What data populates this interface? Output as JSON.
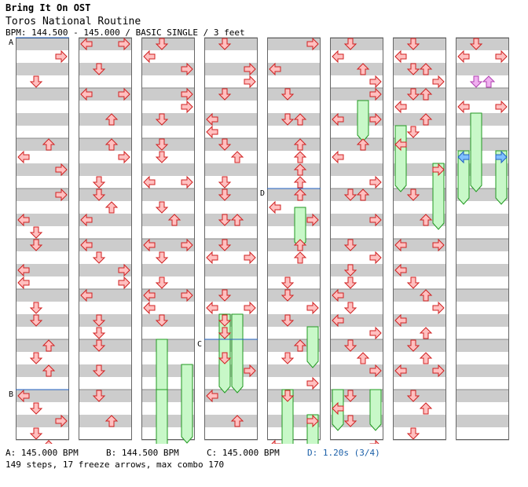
{
  "header": {
    "title": "Bring It On OST",
    "subtitle": "Toros National Routine",
    "meta": "BPM: 144.500 - 145.000 / BASIC SINGLE / 3 feet"
  },
  "markers": [
    {
      "label": "A",
      "column": 0,
      "beat": 0
    },
    {
      "label": "B",
      "column": 0,
      "beat": 28
    },
    {
      "label": "C",
      "column": 3,
      "beat": 24
    },
    {
      "label": "D",
      "column": 4,
      "beat": 12
    }
  ],
  "legend": {
    "a": "A: 145.000 BPM",
    "b": "B: 144.500 BPM",
    "c": "C: 145.000 BPM",
    "d": "D: 1.20s (3/4)"
  },
  "stats": "149 steps, 17 freeze arrows, max combo 170",
  "colors": {
    "arrow_fill": "#ffc0c0",
    "arrow_stroke": "#d02020",
    "freeze_fill": "#c8f8c8",
    "freeze_stroke": "#229922",
    "blue_arrow": "#80c0ff",
    "pink_arrow": "#f0b0f0",
    "stripe": "#cccccc",
    "marker_line": "#2060c0"
  },
  "chart_data": {
    "type": "step-chart",
    "lane_order": [
      "left",
      "down",
      "up",
      "right"
    ],
    "beats_per_column": 32,
    "columns": [
      {
        "notes": [
          [
            2,
            3
          ],
          [
            6,
            1
          ],
          [
            16,
            2
          ],
          [
            18,
            0
          ],
          [
            20,
            3
          ],
          [
            24,
            3
          ],
          [
            28,
            0
          ],
          [
            30,
            1
          ],
          [
            32,
            1
          ],
          [
            36,
            0
          ],
          [
            38,
            0
          ],
          [
            42,
            1
          ],
          [
            44,
            1
          ],
          [
            48,
            2
          ],
          [
            50,
            1
          ],
          [
            52,
            2
          ],
          [
            56,
            0
          ],
          [
            58,
            1
          ],
          [
            60,
            3
          ],
          [
            62,
            1
          ],
          [
            64,
            2
          ],
          [
            66,
            2
          ],
          [
            68,
            2
          ]
        ],
        "holds": []
      },
      {
        "notes": [
          [
            0,
            0
          ],
          [
            0,
            3
          ],
          [
            4,
            1
          ],
          [
            8,
            0
          ],
          [
            8,
            3
          ],
          [
            12,
            2
          ],
          [
            16,
            2
          ],
          [
            18,
            3
          ],
          [
            22,
            1
          ],
          [
            24,
            1
          ],
          [
            26,
            2
          ],
          [
            28,
            0
          ],
          [
            32,
            0
          ],
          [
            34,
            1
          ],
          [
            36,
            3
          ],
          [
            38,
            3
          ],
          [
            40,
            0
          ],
          [
            44,
            1
          ],
          [
            46,
            1
          ],
          [
            48,
            1
          ],
          [
            52,
            1
          ],
          [
            56,
            1
          ],
          [
            60,
            2
          ],
          [
            66,
            2
          ]
        ],
        "holds": []
      },
      {
        "notes": [
          [
            0,
            1
          ],
          [
            2,
            0
          ],
          [
            4,
            3
          ],
          [
            8,
            3
          ],
          [
            10,
            3
          ],
          [
            12,
            1
          ],
          [
            16,
            1
          ],
          [
            18,
            1
          ],
          [
            22,
            0
          ],
          [
            22,
            3
          ],
          [
            26,
            1
          ],
          [
            28,
            2
          ],
          [
            32,
            0
          ],
          [
            32,
            3
          ],
          [
            34,
            1
          ],
          [
            38,
            1
          ],
          [
            40,
            0
          ],
          [
            40,
            3
          ],
          [
            42,
            0
          ],
          [
            44,
            1
          ],
          [
            66,
            0
          ],
          [
            70,
            3
          ]
        ],
        "holds": [
          [
            48,
            1,
            6
          ],
          [
            52,
            3,
            6
          ],
          [
            56,
            1,
            6
          ]
        ]
      },
      {
        "notes": [
          [
            0,
            1
          ],
          [
            4,
            3
          ],
          [
            6,
            3
          ],
          [
            8,
            1
          ],
          [
            12,
            0
          ],
          [
            14,
            0
          ],
          [
            16,
            1
          ],
          [
            18,
            2
          ],
          [
            22,
            1
          ],
          [
            24,
            1
          ],
          [
            28,
            1
          ],
          [
            28,
            2
          ],
          [
            32,
            1
          ],
          [
            34,
            0
          ],
          [
            34,
            3
          ],
          [
            40,
            1
          ],
          [
            42,
            0
          ],
          [
            42,
            3
          ],
          [
            44,
            1
          ],
          [
            46,
            1
          ],
          [
            50,
            1
          ],
          [
            52,
            3
          ],
          [
            56,
            0
          ],
          [
            60,
            2
          ]
        ],
        "holds": [
          [
            44,
            1,
            6
          ],
          [
            44,
            2,
            6
          ]
        ]
      },
      {
        "notes": [
          [
            0,
            3
          ],
          [
            4,
            0
          ],
          [
            8,
            1
          ],
          [
            12,
            1
          ],
          [
            12,
            2
          ],
          [
            16,
            2
          ],
          [
            18,
            2
          ],
          [
            20,
            2
          ],
          [
            22,
            2
          ],
          [
            24,
            2
          ],
          [
            26,
            0
          ],
          [
            28,
            3
          ],
          [
            32,
            2
          ],
          [
            34,
            2
          ],
          [
            38,
            1
          ],
          [
            40,
            1
          ],
          [
            42,
            3
          ],
          [
            44,
            1
          ],
          [
            48,
            2
          ],
          [
            50,
            1
          ],
          [
            54,
            3
          ],
          [
            56,
            1
          ],
          [
            60,
            3
          ],
          [
            64,
            0
          ]
        ],
        "holds": [
          [
            27,
            2,
            3
          ],
          [
            46,
            3,
            3
          ],
          [
            56,
            1,
            5
          ],
          [
            60,
            3,
            5
          ]
        ]
      },
      {
        "notes": [
          [
            0,
            1
          ],
          [
            2,
            0
          ],
          [
            4,
            2
          ],
          [
            6,
            3
          ],
          [
            8,
            3
          ],
          [
            12,
            0
          ],
          [
            12,
            3
          ],
          [
            16,
            2
          ],
          [
            18,
            0
          ],
          [
            22,
            3
          ],
          [
            24,
            1
          ],
          [
            24,
            2
          ],
          [
            28,
            3
          ],
          [
            32,
            1
          ],
          [
            34,
            3
          ],
          [
            36,
            1
          ],
          [
            38,
            1
          ],
          [
            40,
            0
          ],
          [
            42,
            1
          ],
          [
            44,
            0
          ],
          [
            46,
            3
          ],
          [
            48,
            1
          ],
          [
            50,
            2
          ],
          [
            52,
            3
          ],
          [
            56,
            1
          ],
          [
            58,
            0
          ],
          [
            60,
            1
          ],
          [
            64,
            3
          ]
        ],
        "holds": [
          [
            10,
            2,
            3
          ],
          [
            56,
            0,
            3
          ],
          [
            56,
            3,
            3
          ]
        ]
      },
      {
        "notes": [
          [
            0,
            1
          ],
          [
            2,
            0
          ],
          [
            4,
            1
          ],
          [
            4,
            2
          ],
          [
            6,
            3
          ],
          [
            8,
            1
          ],
          [
            8,
            2
          ],
          [
            10,
            0
          ],
          [
            12,
            2
          ],
          [
            14,
            1
          ],
          [
            16,
            0
          ],
          [
            20,
            3
          ],
          [
            24,
            1
          ],
          [
            28,
            2
          ],
          [
            32,
            0
          ],
          [
            32,
            3
          ],
          [
            36,
            0
          ],
          [
            38,
            1
          ],
          [
            40,
            2
          ],
          [
            42,
            3
          ],
          [
            44,
            0
          ],
          [
            46,
            2
          ],
          [
            48,
            1
          ],
          [
            50,
            2
          ],
          [
            52,
            0
          ],
          [
            52,
            3
          ],
          [
            56,
            1
          ],
          [
            58,
            2
          ],
          [
            62,
            1
          ]
        ],
        "holds": [
          [
            14,
            0,
            5
          ],
          [
            20,
            3,
            5
          ]
        ]
      },
      {
        "notes": [
          [
            0,
            1
          ],
          [
            2,
            0
          ],
          [
            2,
            3
          ],
          [
            10,
            0
          ],
          [
            10,
            3
          ]
        ],
        "holds": [
          [
            12,
            1,
            6
          ],
          [
            18,
            0,
            4
          ],
          [
            18,
            3,
            4
          ]
        ],
        "blue_arrows": [
          [
            18,
            0
          ],
          [
            18,
            3
          ]
        ],
        "pink_arrows": [
          [
            6,
            1
          ],
          [
            6,
            2
          ]
        ]
      }
    ]
  }
}
